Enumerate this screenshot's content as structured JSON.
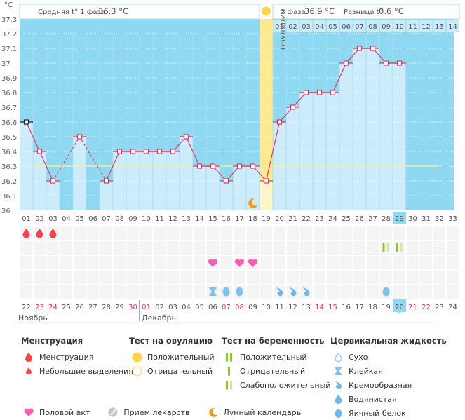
{
  "axis": {
    "unit": "°C",
    "y_ticks": [
      "37.3",
      "37.2",
      "37.1",
      "37",
      "36.9",
      "36.8",
      "36.7",
      "36.6",
      "36.5",
      "36.4",
      "36.3",
      "36.2",
      "36.1",
      "36"
    ]
  },
  "header": {
    "phase1_label": "Средняя t° 1 фаза",
    "phase1_value": "36.3 °C",
    "phase2_label": "2 фаза",
    "phase2_value": "36.9 °C",
    "diff_label": "Разница t°",
    "diff_value": "0.6 °C",
    "ovulation_label": "ОВУЛЯЦИЯ"
  },
  "colors": {
    "chart_bg": "#8fd8f2",
    "bar_fill": "#ccecfb",
    "line": "#e8335f",
    "coverline": "#f5ee9a",
    "ovulation": "#fde98e",
    "ovulation_light": "#fff6c8",
    "today_highlight": "#8fd8f2",
    "weekend_red": "#e8335f"
  },
  "chart_data": {
    "type": "line",
    "title": "Базальная температура",
    "ylabel": "°C",
    "ylim": [
      36.0,
      37.3
    ],
    "x": [
      "01",
      "02",
      "03",
      "04",
      "05",
      "06",
      "07",
      "08",
      "09",
      "10",
      "11",
      "12",
      "13",
      "14",
      "15",
      "16",
      "17",
      "18",
      "19",
      "20",
      "21",
      "22",
      "23",
      "24",
      "25",
      "26",
      "27",
      "28",
      "29",
      "30",
      "31",
      "32",
      "33"
    ],
    "series": [
      {
        "name": "temperature",
        "values": [
          36.6,
          36.4,
          36.2,
          null,
          36.5,
          null,
          36.2,
          36.4,
          36.4,
          36.4,
          36.4,
          36.4,
          36.5,
          36.3,
          36.3,
          36.2,
          36.3,
          36.3,
          36.2,
          36.6,
          36.7,
          36.8,
          36.8,
          36.8,
          37.0,
          37.1,
          37.1,
          37.0,
          37.0,
          null,
          null,
          null,
          null
        ]
      }
    ],
    "coverline": 36.3,
    "ovulation_day": 19,
    "current_day": 29,
    "phase2_day_labels": [
      "01",
      "02",
      "03",
      "04",
      "05",
      "06",
      "07",
      "08",
      "09",
      "10",
      "11",
      "12",
      "13",
      "14"
    ],
    "grid": true
  },
  "calendar": {
    "dates": [
      {
        "d": "22",
        "red": false
      },
      {
        "d": "23",
        "red": true
      },
      {
        "d": "24",
        "red": true
      },
      {
        "d": "25",
        "red": false
      },
      {
        "d": "26",
        "red": false
      },
      {
        "d": "27",
        "red": false
      },
      {
        "d": "28",
        "red": false
      },
      {
        "d": "29",
        "red": false
      },
      {
        "d": "30",
        "red": true
      },
      {
        "d": "01",
        "red": true
      },
      {
        "d": "02",
        "red": false
      },
      {
        "d": "03",
        "red": false
      },
      {
        "d": "04",
        "red": false
      },
      {
        "d": "05",
        "red": false
      },
      {
        "d": "06",
        "red": false
      },
      {
        "d": "07",
        "red": true
      },
      {
        "d": "08",
        "red": true
      },
      {
        "d": "09",
        "red": false
      },
      {
        "d": "10",
        "red": false
      },
      {
        "d": "11",
        "red": false
      },
      {
        "d": "12",
        "red": false
      },
      {
        "d": "13",
        "red": false
      },
      {
        "d": "14",
        "red": true
      },
      {
        "d": "15",
        "red": true
      },
      {
        "d": "16",
        "red": false
      },
      {
        "d": "17",
        "red": false
      },
      {
        "d": "18",
        "red": false
      },
      {
        "d": "19",
        "red": false
      },
      {
        "d": "20",
        "red": false,
        "today": true
      },
      {
        "d": "21",
        "red": true
      },
      {
        "d": "22",
        "red": true
      },
      {
        "d": "23",
        "red": false
      },
      {
        "d": "24",
        "red": false
      }
    ],
    "month1": "Ноябрь",
    "month2": "Декабрь"
  },
  "markers": {
    "menstruation_days": [
      1,
      2,
      3
    ],
    "pregnancy_test_days": [
      {
        "day": 28,
        "type": "weak-positive"
      },
      {
        "day": 29,
        "type": "weak-positive"
      }
    ],
    "intercourse_days": [
      15,
      17,
      18
    ],
    "moon_day": 18,
    "cervical": [
      {
        "day": 15,
        "type": "sticky"
      },
      {
        "day": 16,
        "type": "egg-white"
      },
      {
        "day": 17,
        "type": "egg-white"
      },
      {
        "day": 20,
        "type": "creamy"
      },
      {
        "day": 21,
        "type": "creamy"
      },
      {
        "day": 22,
        "type": "creamy"
      },
      {
        "day": 28,
        "type": "egg-white"
      }
    ]
  },
  "legend": {
    "menstruation": {
      "title": "Менструация",
      "items": [
        "Менструация",
        "Небольшие выделения"
      ]
    },
    "ovulation_test": {
      "title": "Тест на овуляцию",
      "items": [
        "Положительный",
        "Отрицательный"
      ]
    },
    "pregnancy_test": {
      "title": "Тест на беременность",
      "items": [
        "Положительный",
        "Отрицательный",
        "Слабоположительный"
      ]
    },
    "cervical": {
      "title": "Цервикальная жидкость",
      "items": [
        "Сухо",
        "Клейкая",
        "Кремообразная",
        "Водянистая",
        "Яичный белок"
      ]
    },
    "bottom": [
      "Половой акт",
      "Прием лекарств",
      "Лунный календарь"
    ]
  }
}
